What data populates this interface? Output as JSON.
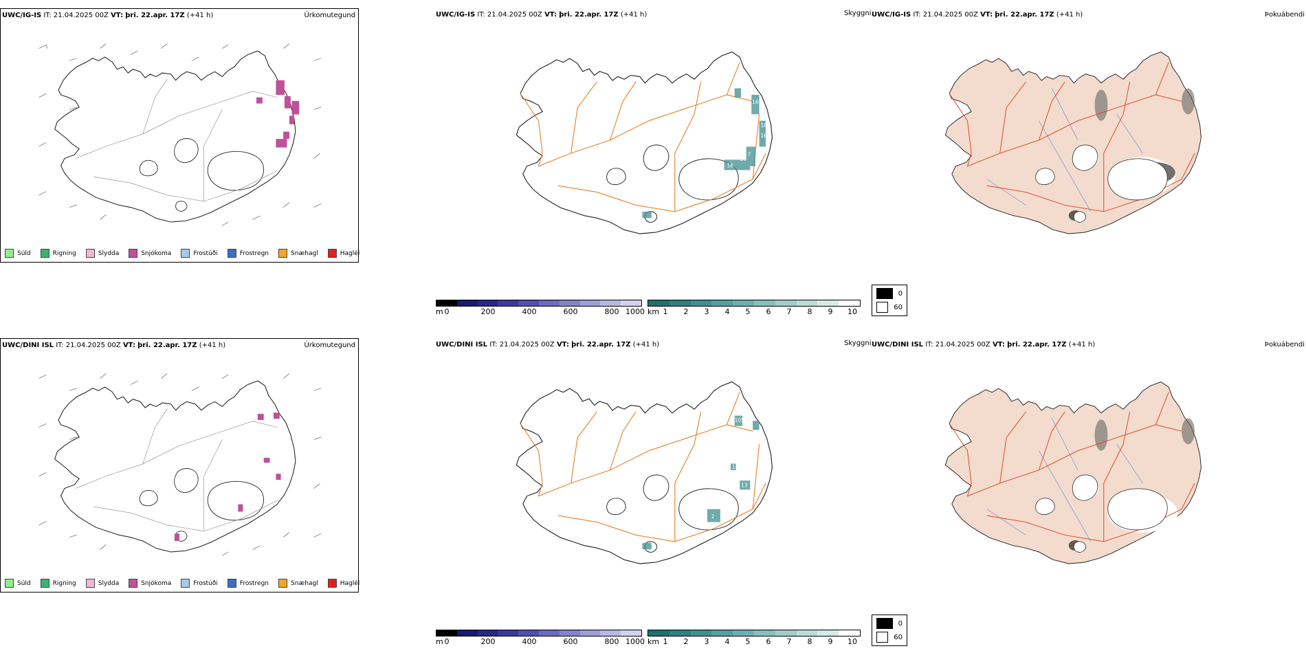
{
  "rows": [
    {
      "model": "UWC/IG-IS",
      "it_label": "IT:",
      "it_value": "21.04.2025 00Z",
      "vt_label": "VT:",
      "vt_value": "þri. 22.apr. 17Z",
      "lead": "(+41 h)"
    },
    {
      "model": "UWC/DINI ISL",
      "it_label": "IT:",
      "it_value": "21.04.2025 00Z",
      "vt_label": "VT:",
      "vt_value": "þri. 22.apr. 17Z",
      "lead": "(+41 h)"
    }
  ],
  "panel_titles": {
    "precip": "Úrkomutegund",
    "visibility": "Skyggni",
    "fog": "Þokuábendi"
  },
  "precip_legend": [
    {
      "label": "Súld",
      "color": "#90ee90"
    },
    {
      "label": "Rigning",
      "color": "#3cb371"
    },
    {
      "label": "Slydda",
      "color": "#f4b6d2"
    },
    {
      "label": "Snjókoma",
      "color": "#c0509a"
    },
    {
      "label": "Frostúði",
      "color": "#a6c8f0"
    },
    {
      "label": "Frostregn",
      "color": "#3a70c0"
    },
    {
      "label": "Snæhagl",
      "color": "#f5a623"
    },
    {
      "label": "Haglél",
      "color": "#e02020"
    }
  ],
  "height_bar": {
    "unit": "m",
    "ticks": [
      "0",
      "200",
      "400",
      "600",
      "800",
      "1000"
    ],
    "colors": [
      "#000000",
      "#1a1a6e",
      "#28288a",
      "#3a3a9e",
      "#5050b0",
      "#6a6abe",
      "#8484cc",
      "#9e9ed8",
      "#b8b8e4",
      "#d2d2ee"
    ]
  },
  "visibility_bar": {
    "unit": "km",
    "ticks": [
      "1",
      "2",
      "3",
      "4",
      "5",
      "6",
      "7",
      "8",
      "9",
      "10"
    ],
    "colors": [
      "#1f6f6f",
      "#2f8080",
      "#3f9090",
      "#55a0a0",
      "#6cb0ae",
      "#86c0bc",
      "#a0cec9",
      "#bcdcd8",
      "#d6eae7",
      "#ffffff"
    ]
  },
  "fog_legend": [
    {
      "label": "0",
      "color": "#000000"
    },
    {
      "label": "60",
      "color": "#ffffff"
    }
  ],
  "visibility_labels_top": [
    "16",
    "16",
    "16",
    "16",
    "7",
    "16",
    "7"
  ],
  "visibility_labels_bottom": [
    "105",
    "1",
    "13",
    "2"
  ],
  "colors": {
    "road": "#e8822a",
    "road_fog": "#e04020",
    "river": "#8090e0",
    "land_fog": "#f3dccd"
  }
}
